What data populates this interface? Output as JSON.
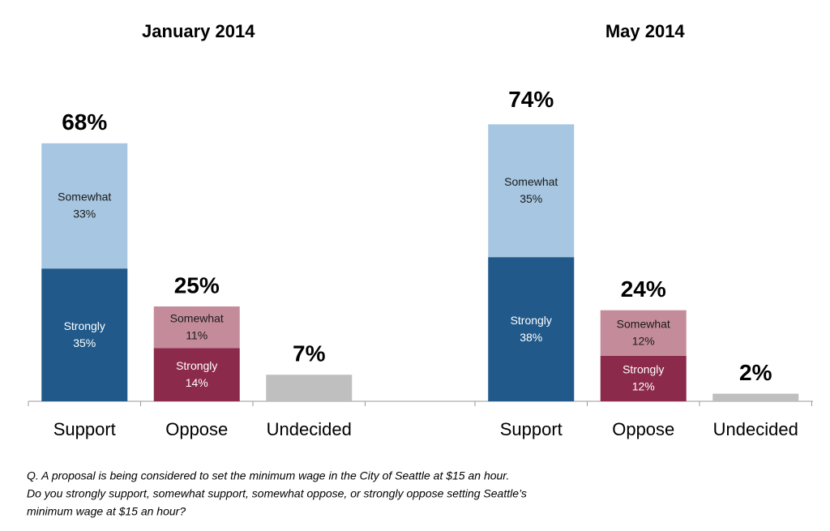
{
  "chart_data": [
    {
      "type": "bar",
      "title": "January 2014",
      "categories": [
        "Support",
        "Oppose",
        "Undecided"
      ],
      "bars": [
        {
          "segments": [
            {
              "name": "Strongly",
              "value": 35,
              "value_label": "35%",
              "color": "#20598a"
            },
            {
              "name": "Somewhat",
              "value": 33,
              "value_label": "33%",
              "color": "#a7c6e1"
            }
          ],
          "total": 68,
          "total_label": "68%"
        },
        {
          "segments": [
            {
              "name": "Strongly",
              "value": 14,
              "value_label": "14%",
              "color": "#8c2a4c"
            },
            {
              "name": "Somewhat",
              "value": 11,
              "value_label": "11%",
              "color": "#c48c9b"
            }
          ],
          "total": 25,
          "total_label": "25%"
        },
        {
          "segments": [
            {
              "value": 7,
              "color": "#bfbfbf"
            }
          ],
          "total": 7,
          "total_label": "7%"
        }
      ]
    },
    {
      "type": "bar",
      "title": "May 2014",
      "categories": [
        "Support",
        "Oppose",
        "Undecided"
      ],
      "bars": [
        {
          "segments": [
            {
              "name": "Strongly",
              "value": 38,
              "value_label": "38%",
              "color": "#20598a"
            },
            {
              "name": "Somewhat",
              "value": 35,
              "value_label": "35%",
              "color": "#a7c6e1"
            }
          ],
          "total": 74,
          "total_label": "74%"
        },
        {
          "segments": [
            {
              "name": "Strongly",
              "value": 12,
              "value_label": "12%",
              "color": "#8c2a4c"
            },
            {
              "name": "Somewhat",
              "value": 12,
              "value_label": "12%",
              "color": "#c48c9b"
            }
          ],
          "total": 24,
          "total_label": "24%"
        },
        {
          "segments": [
            {
              "value": 2,
              "color": "#bfbfbf"
            }
          ],
          "total": 2,
          "total_label": "2%"
        }
      ]
    }
  ],
  "note": [
    "Q.  A proposal is being considered to set the minimum wage in the City of Seattle at $15 an hour.",
    "Do you strongly support, somewhat support, somewhat oppose, or strongly oppose setting Seattle’s",
    "minimum wage at $15 an hour?"
  ]
}
